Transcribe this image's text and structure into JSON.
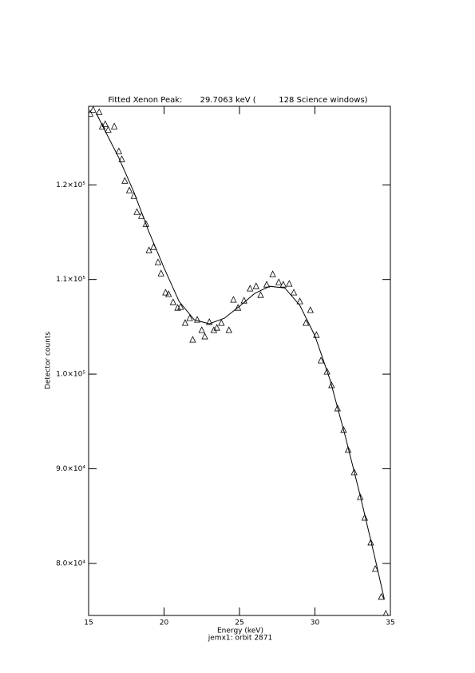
{
  "chart_data": {
    "type": "scatter",
    "title": "Fitted Xenon Peak:       29.7063 keV (         128 Science windows)",
    "xlabel": "Energy (keV)",
    "subtitle": "jemx1: orbit 2871",
    "ylabel": "Detector counts",
    "marker": "triangle",
    "color": "#000000",
    "xlim": [
      15,
      35
    ],
    "ylim": [
      74500,
      128300
    ],
    "xticks": [
      15,
      20,
      25,
      30,
      35
    ],
    "yticks": [
      {
        "value": 80000,
        "label": "8.0×10⁴"
      },
      {
        "value": 90000,
        "label": "9.0×10⁴"
      },
      {
        "value": 100000,
        "label": "1.0×10⁵"
      },
      {
        "value": 110000,
        "label": "1.1×10⁵"
      },
      {
        "value": 120000,
        "label": "1.2×10⁵"
      }
    ],
    "x": [
      15.1,
      15.3,
      15.7,
      15.9,
      16.1,
      16.3,
      16.7,
      17.0,
      17.2,
      17.4,
      17.7,
      18.0,
      18.2,
      18.5,
      18.8,
      19.0,
      19.3,
      19.6,
      19.8,
      20.1,
      20.3,
      20.6,
      20.9,
      21.1,
      21.4,
      21.7,
      21.9,
      22.2,
      22.5,
      22.7,
      23.0,
      23.3,
      23.5,
      23.8,
      24.3,
      24.6,
      24.9,
      25.3,
      25.7,
      26.1,
      26.4,
      26.8,
      27.2,
      27.6,
      27.9,
      28.3,
      28.6,
      29.0,
      29.4,
      29.7,
      30.1,
      30.4,
      30.8,
      31.1,
      31.5,
      31.9,
      32.2,
      32.6,
      33.0,
      33.3,
      33.7,
      34.0,
      34.4,
      34.7
    ],
    "values": [
      127510,
      127930,
      127680,
      126160,
      126410,
      125820,
      126160,
      123540,
      122700,
      120420,
      119410,
      118820,
      117130,
      116710,
      115860,
      113080,
      113420,
      111810,
      110630,
      108610,
      108440,
      107590,
      107000,
      107090,
      105400,
      105910,
      103630,
      105740,
      104640,
      103970,
      105490,
      104640,
      104890,
      105400,
      104640,
      107850,
      107000,
      107760,
      109030,
      109280,
      108350,
      109450,
      110550,
      109700,
      109450,
      109540,
      108610,
      107680,
      105400,
      106750,
      104130,
      101430,
      100250,
      98820,
      96370,
      94090,
      91980,
      89620,
      87000,
      84810,
      82190,
      79410,
      76460,
      74680
    ],
    "fit": {
      "type": "line",
      "x": [
        15.5,
        16,
        17,
        18,
        19,
        20,
        21,
        22,
        23,
        24,
        25,
        26,
        27,
        28,
        29,
        30,
        31,
        32,
        33,
        34,
        34.6
      ],
      "values": [
        127590,
        125990,
        122870,
        119240,
        115020,
        111220,
        107680,
        105740,
        105320,
        105910,
        107170,
        108520,
        109280,
        109110,
        107260,
        104050,
        99410,
        93500,
        87170,
        80420,
        76200
      ]
    }
  }
}
